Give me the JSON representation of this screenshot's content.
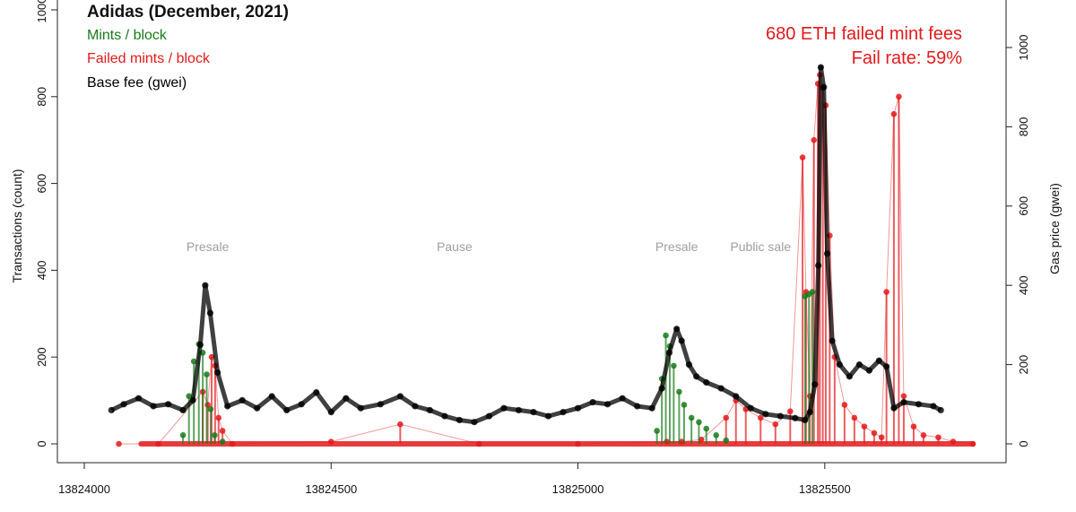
{
  "chart_data": {
    "type": "line",
    "title": "Adidas (December, 2021)",
    "legend": {
      "position": "top-left",
      "entries": [
        {
          "label": "Mints / block",
          "color": "#1a7a1a"
        },
        {
          "label": "Failed mints / block",
          "color": "#e31a1c"
        },
        {
          "label": "Base fee (gwei)",
          "color": "#000000"
        }
      ]
    },
    "annotations": {
      "fees_line": "680 ETH failed mint fees",
      "fail_rate_line": "Fail rate: 59%",
      "color": "#e31a1c",
      "phase_color": "#9e9e9e",
      "phases": [
        {
          "label": "Presale",
          "x": 13824250
        },
        {
          "label": "Pause",
          "x": 13824750
        },
        {
          "label": "Presale",
          "x": 13825200
        },
        {
          "label": "Public sale",
          "x": 13825370
        }
      ]
    },
    "x_axis": {
      "label": "",
      "range": [
        13824000,
        13825800
      ],
      "ticks": [
        13824000,
        13824500,
        13825000,
        13825500
      ],
      "tick_labels": [
        "13824000",
        "13824500",
        "13825000",
        "13825500"
      ]
    },
    "y_axis_left": {
      "label": "Transactions (count)",
      "range": [
        0,
        1000
      ],
      "ticks": [
        0,
        200,
        400,
        600,
        800,
        1000
      ],
      "tick_labels": [
        "0",
        "200",
        "400",
        "600",
        "800",
        "1000"
      ]
    },
    "y_axis_right": {
      "label": "Gas price (gwei)",
      "range": [
        0,
        1100
      ],
      "ticks": [
        0,
        200,
        400,
        600,
        800,
        1000
      ],
      "tick_labels": [
        "0",
        "200",
        "400",
        "600",
        "800",
        "1000"
      ]
    },
    "series": [
      {
        "name": "Base fee (gwei)",
        "axis": "right",
        "color": "#000000",
        "x": [
          13824055,
          13824080,
          13824110,
          13824140,
          13824170,
          13824200,
          13824220,
          13824235,
          13824245,
          13824255,
          13824270,
          13824290,
          13824320,
          13824350,
          13824380,
          13824410,
          13824440,
          13824470,
          13824500,
          13824530,
          13824560,
          13824600,
          13824640,
          13824670,
          13824700,
          13824730,
          13824760,
          13824790,
          13824820,
          13824850,
          13824880,
          13824910,
          13824940,
          13824970,
          13825000,
          13825030,
          13825060,
          13825090,
          13825120,
          13825150,
          13825170,
          13825185,
          13825200,
          13825210,
          13825225,
          13825240,
          13825260,
          13825290,
          13825320,
          13825350,
          13825380,
          13825410,
          13825440,
          13825460,
          13825470,
          13825480,
          13825487,
          13825492,
          13825498,
          13825505,
          13825515,
          13825530,
          13825550,
          13825570,
          13825590,
          13825610,
          13825625,
          13825640,
          13825660,
          13825690,
          13825720,
          13825735
        ],
        "values": [
          85,
          100,
          115,
          95,
          100,
          85,
          110,
          250,
          400,
          330,
          180,
          95,
          110,
          90,
          120,
          85,
          100,
          130,
          80,
          115,
          90,
          100,
          120,
          95,
          85,
          70,
          60,
          55,
          70,
          90,
          85,
          80,
          70,
          80,
          90,
          105,
          100,
          115,
          95,
          90,
          140,
          230,
          290,
          260,
          200,
          170,
          155,
          140,
          120,
          90,
          75,
          70,
          65,
          60,
          80,
          150,
          450,
          950,
          900,
          480,
          260,
          200,
          170,
          200,
          185,
          210,
          195,
          90,
          105,
          100,
          95,
          85
        ]
      },
      {
        "name": "Mints / block",
        "axis": "left",
        "color": "#1a7a1a",
        "x": [
          13824200,
          13824212,
          13824222,
          13824232,
          13824240,
          13824248,
          13824256,
          13824264,
          13824280,
          13825160,
          13825170,
          13825178,
          13825186,
          13825194,
          13825205,
          13825215,
          13825230,
          13825245,
          13825260,
          13825280,
          13825300,
          13825460,
          13825468,
          13825475
        ],
        "values": [
          20,
          110,
          190,
          230,
          210,
          160,
          80,
          20,
          5,
          30,
          150,
          250,
          225,
          180,
          120,
          90,
          60,
          50,
          35,
          20,
          8,
          340,
          345,
          350
        ]
      },
      {
        "name": "Failed mints / block",
        "axis": "left",
        "color": "#e31a1c",
        "x": [
          13824070,
          13824150,
          13824240,
          13824250,
          13824258,
          13824265,
          13824272,
          13824280,
          13824300,
          13824500,
          13824640,
          13824800,
          13825000,
          13825180,
          13825210,
          13825250,
          13825300,
          13825320,
          13825340,
          13825370,
          13825400,
          13825430,
          13825455,
          13825462,
          13825470,
          13825478,
          13825486,
          13825490,
          13825496,
          13825502,
          13825510,
          13825520,
          13825540,
          13825560,
          13825580,
          13825600,
          13825615,
          13825625,
          13825640,
          13825650,
          13825660,
          13825680,
          13825700,
          13825730,
          13825760,
          13825800
        ],
        "values": [
          0,
          0,
          120,
          90,
          200,
          180,
          60,
          30,
          0,
          5,
          45,
          0,
          0,
          5,
          5,
          10,
          60,
          100,
          80,
          60,
          45,
          75,
          660,
          350,
          110,
          700,
          830,
          850,
          820,
          780,
          480,
          200,
          90,
          60,
          40,
          25,
          15,
          350,
          760,
          800,
          110,
          40,
          20,
          15,
          5,
          0
        ]
      }
    ]
  }
}
